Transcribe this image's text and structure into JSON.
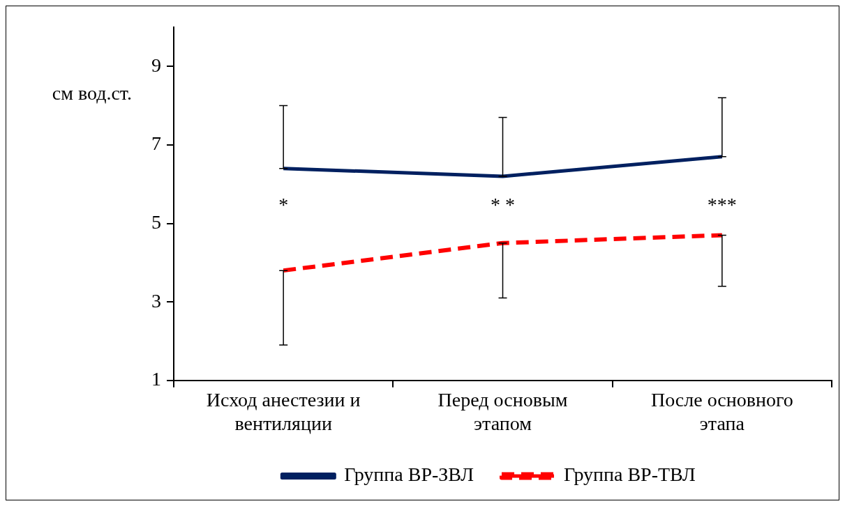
{
  "chart_data": {
    "type": "line",
    "ylabel": "см вод.ст.",
    "categories": [
      "Исход анестезии и вентиляции",
      "Перед основым этапом",
      "После основного этапа"
    ],
    "series": [
      {
        "name": "Группа ВР-ЗВЛ",
        "color": "#002060",
        "values": [
          6.4,
          6.2,
          6.7
        ],
        "errors": [
          [
            6.4,
            8.0
          ],
          [
            6.2,
            7.7
          ],
          [
            6.7,
            8.2
          ]
        ],
        "line_style": "solid"
      },
      {
        "name": "Группа ВР-ТВЛ",
        "color": "#ff0000",
        "values": [
          3.8,
          4.5,
          4.7
        ],
        "errors": [
          [
            1.9,
            3.8
          ],
          [
            3.1,
            4.5
          ],
          [
            3.4,
            4.7
          ]
        ],
        "line_style": "dashed"
      }
    ],
    "ylim": [
      1,
      10
    ],
    "yticks": [
      1,
      3,
      5,
      7,
      9
    ],
    "grid": false,
    "legend": "bottom",
    "marker": "none",
    "annotations": [
      "*",
      "* *",
      "***"
    ]
  }
}
